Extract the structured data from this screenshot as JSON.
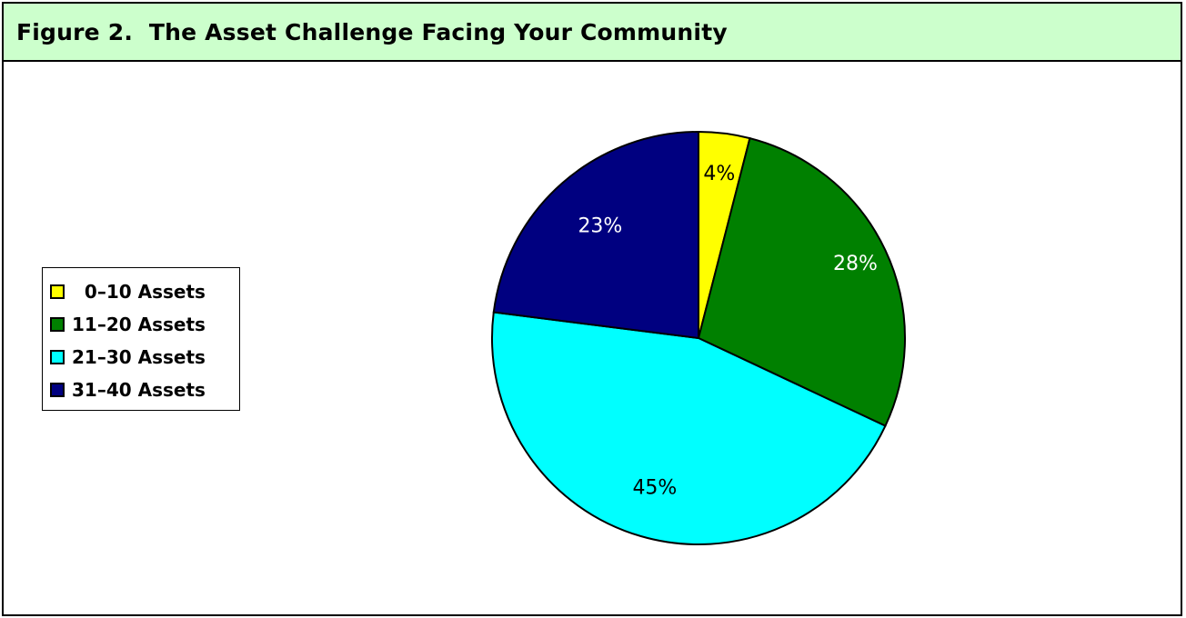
{
  "figure": {
    "title": "Figure 2.  The Asset Challenge Facing Your Community"
  },
  "chart_data": {
    "type": "pie",
    "title": "Figure 2.  The Asset Challenge Facing Your Community",
    "legend_position": "left",
    "categories": [
      "0–10 Assets",
      "11–20 Assets",
      "21–30 Assets",
      "31–40 Assets"
    ],
    "values": [
      4,
      28,
      45,
      23
    ],
    "labels": [
      "4%",
      "28%",
      "45%",
      "23%"
    ],
    "colors": [
      "#ffff00",
      "#008000",
      "#00ffff",
      "#000080"
    ],
    "label_colors": [
      "#000000",
      "#ffffff",
      "#000000",
      "#ffffff"
    ],
    "legend_labels": [
      "  0–10 Assets",
      "11–20 Assets",
      "21–30 Assets",
      "31–40 Assets"
    ]
  }
}
